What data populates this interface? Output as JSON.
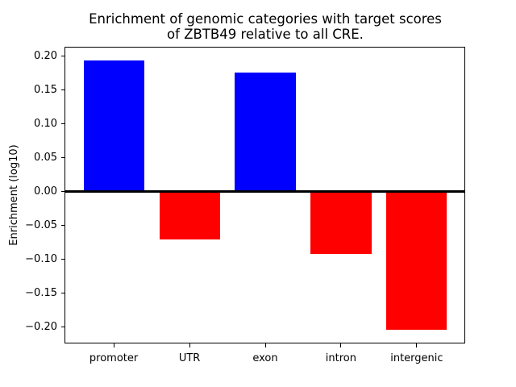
{
  "title": "Enrichment of genomic categories with target scores\nof ZBTB49 relative to all CRE.",
  "chart_data": {
    "type": "bar",
    "title": "Enrichment of genomic categories with target scores\nof ZBTB49 relative to all CRE.",
    "categories": [
      "promoter",
      "UTR",
      "exon",
      "intron",
      "intergenic"
    ],
    "values": [
      0.194,
      -0.071,
      0.176,
      -0.092,
      -0.204
    ],
    "bar_colors": [
      "#0000ff",
      "#ff0000",
      "#0000ff",
      "#ff0000",
      "#ff0000"
    ],
    "positive_color": "#0000ff",
    "negative_color": "#ff0000",
    "xlabel": "",
    "ylabel": "Enrichment (log10)",
    "ylim": [
      -0.224,
      0.214
    ],
    "yticks": [
      0.2,
      0.15,
      0.1,
      0.05,
      0.0,
      -0.05,
      -0.1,
      -0.15,
      -0.2
    ],
    "ytick_labels": [
      "0.20",
      "0.15",
      "0.10",
      "0.05",
      "0.00",
      "−0.05",
      "−0.10",
      "−0.15",
      "−0.20"
    ],
    "zero_line": true,
    "grid": false,
    "legend": null,
    "bar_relative_width": 0.8
  }
}
